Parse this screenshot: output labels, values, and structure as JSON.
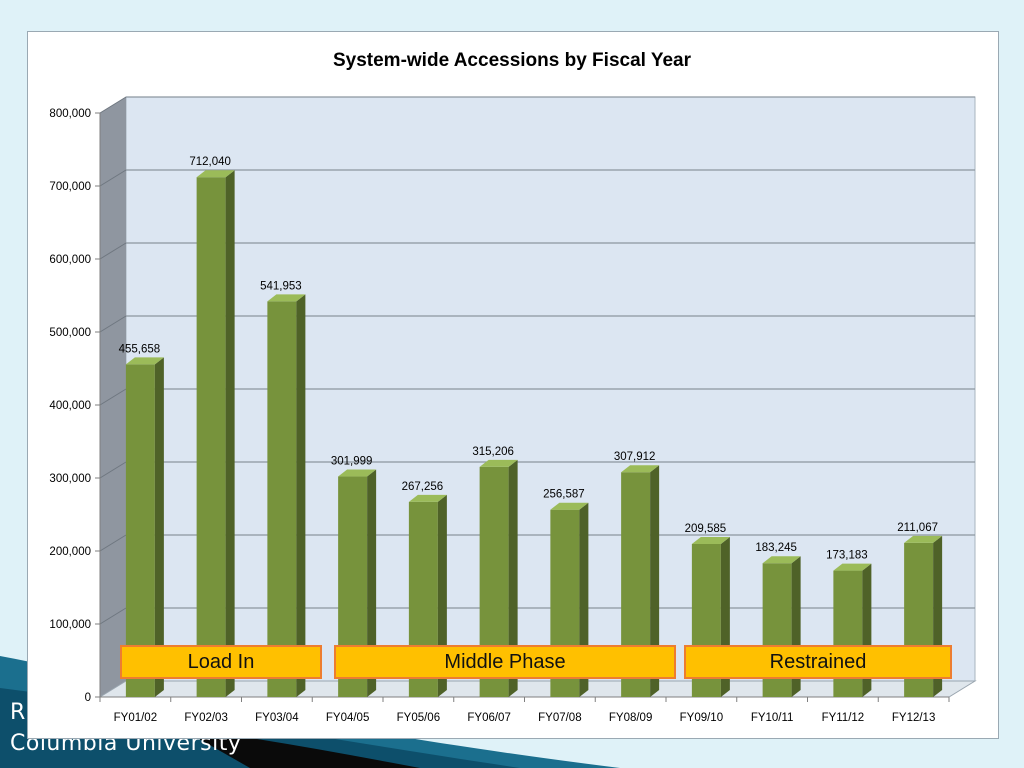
{
  "footer": {
    "line1": "R",
    "line2": "Columbia University"
  },
  "colors": {
    "background": "#dff2f8",
    "plot_area": "#dce6f2",
    "bar_front": "#77933c",
    "bar_side": "#4f6228",
    "bar_top": "#9bbb59",
    "gridline": "#8c96a0",
    "phase_fill": "#ffc000",
    "phase_border": "#ed7d31",
    "deco_band": "#1b6f8e"
  },
  "chart_data": {
    "type": "bar",
    "title": "System-wide Accessions by Fiscal Year",
    "xlabel": "",
    "ylabel": "",
    "ylim": [
      0,
      800000
    ],
    "yticks": [
      0,
      100000,
      200000,
      300000,
      400000,
      500000,
      600000,
      700000,
      800000
    ],
    "ytick_labels": [
      "0",
      "100,000",
      "200,000",
      "300,000",
      "400,000",
      "500,000",
      "600,000",
      "700,000",
      "800,000"
    ],
    "grid": true,
    "legend": "none",
    "categories": [
      "FY01/02",
      "FY02/03",
      "FY03/04",
      "FY04/05",
      "FY05/06",
      "FY06/07",
      "FY07/08",
      "FY08/09",
      "FY09/10",
      "FY10/11",
      "FY11/12",
      "FY12/13"
    ],
    "values": [
      455658,
      712040,
      541953,
      301999,
      267256,
      315206,
      256587,
      307912,
      209585,
      183245,
      173183,
      211067
    ],
    "data_labels": [
      "455,658",
      "712,040",
      "541,953",
      "301,999",
      "267,256",
      "315,206",
      "256,587",
      "307,912",
      "209,585",
      "183,245",
      "173,183",
      "211,067"
    ],
    "annotations": [
      {
        "label": "Load In",
        "from": "FY01/02",
        "to": "FY03/04"
      },
      {
        "label": "Middle Phase",
        "from": "FY04/05",
        "to": "FY08/09"
      },
      {
        "label": "Restrained",
        "from": "FY09/10",
        "to": "FY12/13"
      }
    ]
  }
}
